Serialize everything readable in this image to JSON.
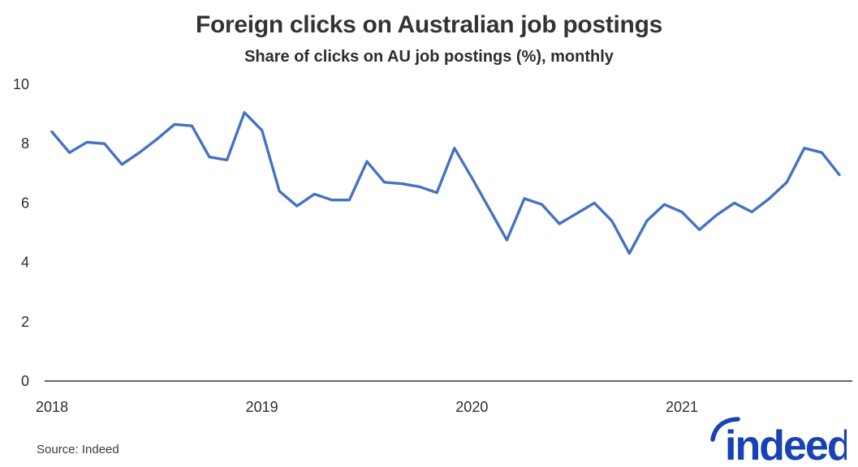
{
  "header": {
    "title": "Foreign clicks on Australian job postings",
    "subtitle": "Share of clicks on AU job postings (%), monthly"
  },
  "chart_data": {
    "type": "line",
    "title": "Foreign clicks on Australian job postings",
    "subtitle": "Share of clicks on AU job postings (%), monthly",
    "unit": "% share of clicks",
    "grid": false,
    "legend_position": "none",
    "ylim": [
      0,
      10
    ],
    "y_ticks": [
      0,
      2,
      4,
      6,
      8,
      10
    ],
    "x_tick_labels": [
      "2018",
      "2019",
      "2020",
      "2021"
    ],
    "x_tick_month_indexes": [
      0,
      12,
      24,
      36
    ],
    "x": [
      "2018-01",
      "2018-02",
      "2018-03",
      "2018-04",
      "2018-05",
      "2018-06",
      "2018-07",
      "2018-08",
      "2018-09",
      "2018-10",
      "2018-11",
      "2018-12",
      "2019-01",
      "2019-02",
      "2019-03",
      "2019-04",
      "2019-05",
      "2019-06",
      "2019-07",
      "2019-08",
      "2019-09",
      "2019-10",
      "2019-11",
      "2019-12",
      "2020-01",
      "2020-02",
      "2020-03",
      "2020-04",
      "2020-05",
      "2020-06",
      "2020-07",
      "2020-08",
      "2020-09",
      "2020-10",
      "2020-11",
      "2020-12",
      "2021-01",
      "2021-02",
      "2021-03",
      "2021-04",
      "2021-05",
      "2021-06",
      "2021-07",
      "2021-08",
      "2021-09",
      "2021-10"
    ],
    "series": [
      {
        "name": "Foreign share of clicks on AU job postings (%)",
        "color": "#4472C4",
        "values": [
          8.4,
          7.7,
          8.05,
          8.0,
          7.3,
          7.7,
          8.15,
          8.65,
          8.6,
          7.55,
          7.45,
          9.05,
          8.45,
          6.4,
          5.9,
          6.3,
          6.1,
          6.1,
          7.4,
          6.7,
          6.65,
          6.55,
          6.35,
          7.85,
          6.85,
          5.8,
          4.75,
          6.15,
          5.95,
          5.3,
          5.65,
          6.0,
          5.4,
          4.3,
          5.4,
          5.95,
          5.7,
          5.1,
          5.6,
          6.0,
          5.7,
          6.15,
          6.7,
          7.85,
          7.7,
          6.95
        ]
      }
    ]
  },
  "footer": {
    "source": "Source: Indeed",
    "logo_text": "indeed"
  },
  "colors": {
    "line": "#4472C4",
    "axis": "#333333",
    "tick_text": "#2d2d2d",
    "logo_blue": "#1742B5"
  }
}
